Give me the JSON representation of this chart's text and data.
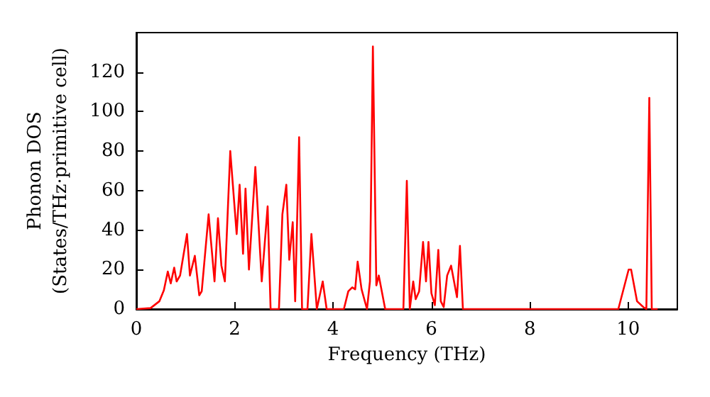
{
  "chart_data": {
    "type": "line",
    "xlabel": "Frequency (THz)",
    "ylabel": "Phonon DOS\n(States/THz·primitive cell)",
    "xlim": [
      0,
      11
    ],
    "ylim": [
      0,
      140
    ],
    "xticks": [
      0,
      2,
      4,
      6,
      8,
      10
    ],
    "yticks": [
      0,
      20,
      40,
      60,
      80,
      100,
      120
    ],
    "grid": false,
    "marker": "none",
    "line_style": "solid",
    "series": [
      {
        "color": "#ff0000",
        "x": [
          0,
          0.29,
          0.47,
          0.56,
          0.64,
          0.7,
          0.77,
          0.82,
          0.89,
          1.03,
          1.09,
          1.19,
          1.28,
          1.33,
          1.47,
          1.59,
          1.66,
          1.73,
          1.8,
          1.91,
          2.04,
          2.1,
          2.17,
          2.22,
          2.29,
          2.42,
          2.55,
          2.67,
          2.73,
          2.9,
          2.97,
          3.05,
          3.11,
          3.18,
          3.23,
          3.31,
          3.37,
          3.48,
          3.56,
          3.67,
          3.79,
          3.87,
          4.22,
          4.31,
          4.39,
          4.45,
          4.5,
          4.58,
          4.69,
          4.75,
          4.81,
          4.88,
          4.93,
          5.06,
          5.43,
          5.5,
          5.56,
          5.63,
          5.68,
          5.75,
          5.83,
          5.89,
          5.94,
          6,
          6.07,
          6.14,
          6.19,
          6.25,
          6.32,
          6.4,
          6.52,
          6.58,
          6.64,
          9.8,
          10.01,
          10.06,
          10.18,
          10.31,
          10.37,
          10.43,
          10.48,
          10.6
        ],
        "values": [
          0,
          0.5,
          4,
          9.5,
          19,
          13,
          21,
          14,
          17,
          38,
          17,
          27,
          7,
          9,
          48,
          14,
          46,
          22,
          14,
          80,
          38,
          63,
          28,
          61,
          20,
          72,
          14,
          52,
          0,
          0,
          48,
          63,
          25,
          44,
          4,
          87,
          0,
          0,
          38,
          0,
          14,
          0,
          0,
          9,
          11,
          10,
          24,
          10,
          0,
          14,
          133,
          12,
          17,
          0,
          0,
          65,
          0,
          14,
          5,
          9,
          34,
          14,
          34,
          8,
          2,
          30,
          4,
          1,
          17,
          22,
          6,
          32,
          0,
          0,
          20,
          20,
          4,
          1,
          0,
          107,
          0,
          0
        ]
      }
    ]
  }
}
